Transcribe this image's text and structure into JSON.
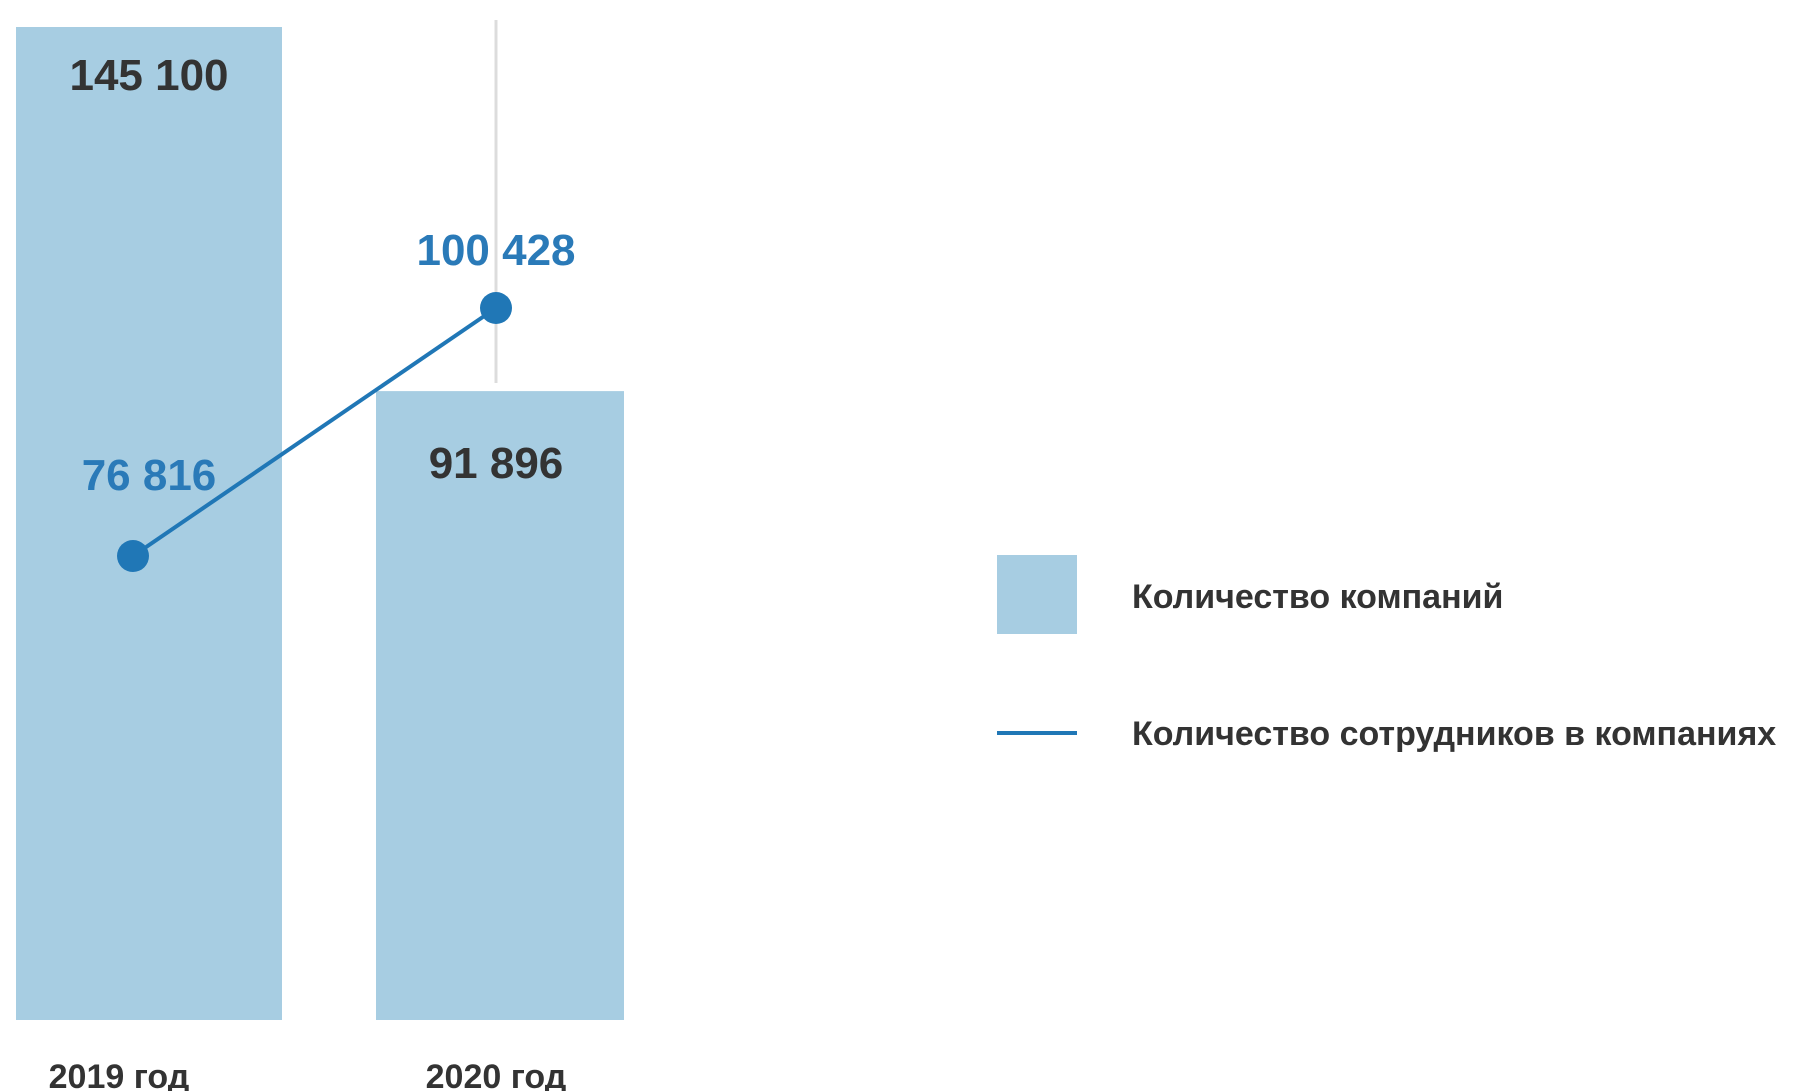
{
  "chart_data": {
    "type": "bar",
    "categories": [
      "2019 год",
      "2020 год"
    ],
    "series": [
      {
        "name": "Количество компаний",
        "kind": "bar",
        "values": [
          145100,
          91896
        ],
        "labels": [
          "145 100",
          "91 896"
        ]
      },
      {
        "name": "Количество сотрудников в компаниях",
        "kind": "line",
        "values": [
          76816,
          100428
        ],
        "labels": [
          "76 816",
          "100 428"
        ]
      }
    ],
    "grid": false,
    "legend_position": "right"
  },
  "colors": {
    "bar": "#a7cde2",
    "line": "#2077b6",
    "bar_value_text": "#333333",
    "line_value_text": "#2a7ab8",
    "tick_text": "#333333",
    "gridline": "#dcdcdc"
  }
}
